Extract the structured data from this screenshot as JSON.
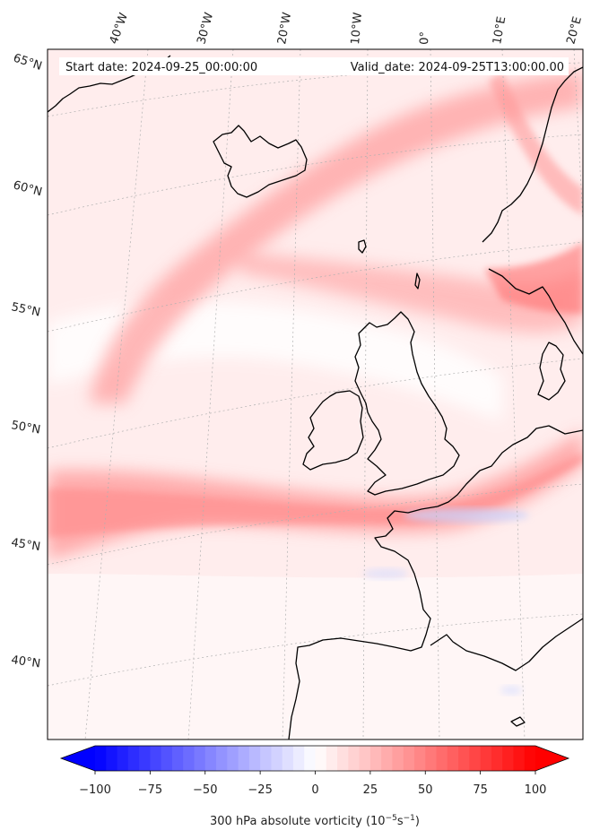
{
  "header": {
    "start_date": "Start date: 2024-09-25_00:00:00",
    "valid_date": "Valid_date: 2024-09-25T13:00:00.00"
  },
  "longitude_labels": [
    "40°W",
    "30°W",
    "20°W",
    "10°W",
    "0°",
    "10°E",
    "20°E"
  ],
  "latitude_labels": [
    "65°N",
    "60°N",
    "55°N",
    "50°N",
    "45°N",
    "40°N"
  ],
  "colorbar": {
    "ticks": [
      "−100",
      "−75",
      "−50",
      "−25",
      "0",
      "25",
      "50",
      "75",
      "100"
    ],
    "range": [
      -100,
      100
    ],
    "label": "300 hPa absolute vorticity (10",
    "unit_sup1": "−5",
    "unit_mid": "s",
    "unit_sup2": "−1",
    "unit_close": ")",
    "negative_color": "#0000ff",
    "zero_color": "#ffffff",
    "positive_color": "#ff0000"
  },
  "colors": {
    "coastline": "#000000",
    "gridline": "#b0b0b0"
  }
}
